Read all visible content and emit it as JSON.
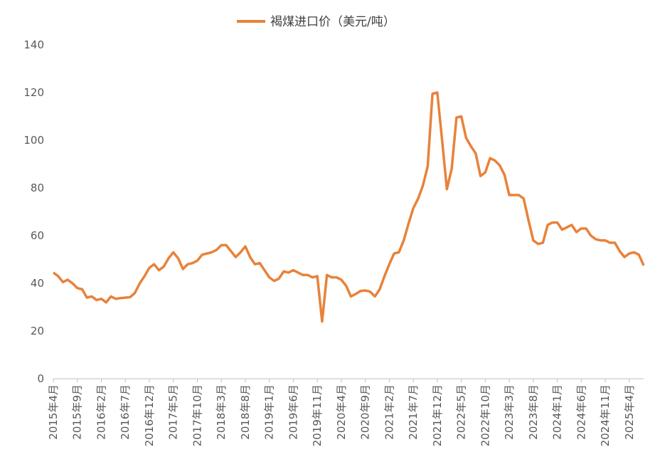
{
  "chart_data": {
    "type": "line",
    "categories": [
      "2015年4月",
      null,
      null,
      null,
      null,
      "2015年9月",
      null,
      null,
      null,
      null,
      "2016年2月",
      null,
      null,
      null,
      null,
      "2016年7月",
      null,
      null,
      null,
      null,
      "2016年12月",
      null,
      null,
      null,
      null,
      "2017年5月",
      null,
      null,
      null,
      null,
      "2017年10月",
      null,
      null,
      null,
      null,
      "2018年3月",
      null,
      null,
      null,
      null,
      "2018年8月",
      null,
      null,
      null,
      null,
      "2019年1月",
      null,
      null,
      null,
      null,
      "2019年6月",
      null,
      null,
      null,
      null,
      "2019年11月",
      null,
      null,
      null,
      null,
      "2020年4月",
      null,
      null,
      null,
      null,
      "2020年9月",
      null,
      null,
      null,
      null,
      "2021年2月",
      null,
      null,
      null,
      null,
      "2021年7月",
      null,
      null,
      null,
      null,
      "2021年12月",
      null,
      null,
      null,
      null,
      "2022年5月",
      null,
      null,
      null,
      null,
      "2022年10月",
      null,
      null,
      null,
      null,
      "2023年3月",
      null,
      null,
      null,
      null,
      "2023年8月",
      null,
      null,
      null,
      null,
      "2024年1月",
      null,
      null,
      null,
      null,
      "2024年6月",
      null,
      null,
      null,
      null,
      "2024年11月",
      null,
      null,
      null,
      null,
      "2025年4月",
      null,
      null,
      null
    ],
    "series": [
      {
        "name": "褐煤进口价（美元/吨）",
        "color": "#e8823a",
        "values": [
          44.5,
          43,
          40.5,
          41.5,
          40,
          38,
          37.5,
          34,
          34.5,
          33,
          33.5,
          32,
          34.5,
          33.5,
          33.8,
          34,
          34.2,
          36,
          40,
          43,
          46.5,
          48,
          45.5,
          47,
          50.5,
          53,
          50.5,
          46,
          48,
          48.5,
          49.5,
          52,
          52.5,
          53,
          54,
          56,
          56,
          53.5,
          51,
          53,
          55.5,
          51,
          48,
          48.5,
          45.5,
          42.5,
          41,
          42,
          45,
          44.5,
          45.5,
          44.5,
          43.5,
          43.5,
          42.5,
          43,
          24,
          43.5,
          42.5,
          42.5,
          41.5,
          39,
          34.5,
          35.5,
          36.8,
          37,
          36.5,
          34.5,
          37.5,
          43,
          48,
          52.5,
          53,
          58,
          65,
          71.5,
          75.5,
          81,
          89,
          119.5,
          120,
          100,
          79.5,
          88,
          109.5,
          110,
          101,
          97.5,
          94.5,
          85,
          86.5,
          92.5,
          91.5,
          89.5,
          85.5,
          77,
          77,
          77,
          75.5,
          66.5,
          58,
          56.5,
          57,
          64.5,
          65.5,
          65.5,
          62.5,
          63.5,
          64.5,
          61.5,
          63,
          63,
          60,
          58.5,
          58,
          58,
          57,
          57,
          53.5,
          51,
          52.5,
          53,
          52,
          47.5
        ]
      }
    ],
    "ylim": [
      0,
      140
    ],
    "yticks": [
      0,
      20,
      40,
      60,
      80,
      100,
      120,
      140
    ],
    "grid": false,
    "legend": "top"
  }
}
